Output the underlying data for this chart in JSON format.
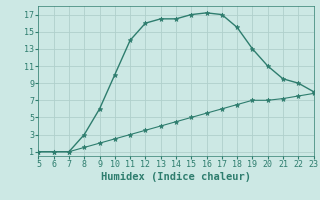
{
  "xlabel": "Humidex (Indice chaleur)",
  "line1_x": [
    5,
    6,
    7,
    8,
    9,
    10,
    11,
    12,
    13,
    14,
    15,
    16,
    17,
    18,
    19,
    20,
    21,
    22,
    23
  ],
  "line1_y": [
    1,
    1,
    1,
    3,
    6,
    10,
    14,
    16,
    16.5,
    16.5,
    17,
    17.2,
    17,
    15.5,
    13,
    11,
    9.5,
    9,
    8
  ],
  "line2_x": [
    5,
    6,
    7,
    8,
    9,
    10,
    11,
    12,
    13,
    14,
    15,
    16,
    17,
    18,
    19,
    20,
    21,
    22,
    23
  ],
  "line2_y": [
    1,
    1,
    1,
    1.5,
    2,
    2.5,
    3,
    3.5,
    4,
    4.5,
    5,
    5.5,
    6,
    6.5,
    7,
    7.0,
    7.2,
    7.5,
    7.8
  ],
  "line_color": "#2e7d6e",
  "bg_color": "#cce8e4",
  "grid_color": "#b0d0cc",
  "xlim": [
    5,
    23
  ],
  "ylim": [
    0.5,
    18
  ],
  "xticks": [
    5,
    6,
    7,
    8,
    9,
    10,
    11,
    12,
    13,
    14,
    15,
    16,
    17,
    18,
    19,
    20,
    21,
    22,
    23
  ],
  "yticks": [
    1,
    3,
    5,
    7,
    9,
    11,
    13,
    15,
    17
  ],
  "tick_fontsize": 6,
  "xlabel_fontsize": 7.5,
  "marker": "*",
  "marker_size": 3.5,
  "linewidth1": 1.0,
  "linewidth2": 0.8
}
